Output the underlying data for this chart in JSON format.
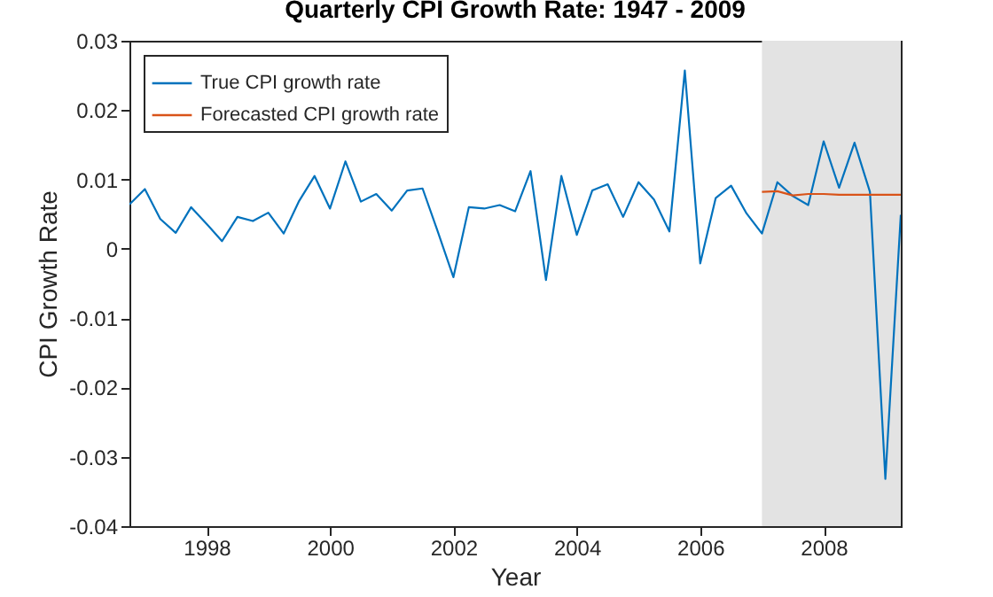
{
  "chart_data": {
    "type": "line",
    "title": "Quarterly CPI Growth Rate: 1947 - 2009",
    "xlabel": "Year",
    "ylabel": "CPI Growth Rate",
    "xlim": [
      1996.75,
      2009.25
    ],
    "xticks": [
      1998,
      2000,
      2002,
      2004,
      2006,
      2008
    ],
    "ylim": [
      -0.04,
      0.03
    ],
    "yticks": [
      -0.04,
      -0.03,
      -0.02,
      -0.01,
      0,
      0.01,
      0.02,
      0.03
    ],
    "legend": "top left",
    "grid": false,
    "bands": [
      {
        "axis": "x",
        "from": 2007,
        "to": 2009.25,
        "color": "#e3e3e3"
      }
    ],
    "series": [
      {
        "name": "True CPI growth rate",
        "color": "#0072bd",
        "x": [
          1996.75,
          1997,
          1997.25,
          1997.5,
          1997.75,
          1998,
          1998.25,
          1998.5,
          1998.75,
          1999,
          1999.25,
          1999.5,
          1999.75,
          2000,
          2000.25,
          2000.5,
          2000.75,
          2001,
          2001.25,
          2001.5,
          2001.75,
          2002,
          2002.25,
          2002.5,
          2002.75,
          2003,
          2003.25,
          2003.5,
          2003.75,
          2004,
          2004.25,
          2004.5,
          2004.75,
          2005,
          2005.25,
          2005.5,
          2005.75,
          2006,
          2006.25,
          2006.5,
          2006.75,
          2007,
          2007.25,
          2007.5,
          2007.75,
          2008,
          2008.25,
          2008.5,
          2008.75,
          2009,
          2009.25
        ],
        "values": [
          0.0064,
          0.0086,
          0.0043,
          0.0023,
          0.006,
          0.0036,
          0.0011,
          0.0046,
          0.004,
          0.0052,
          0.0022,
          0.0069,
          0.0105,
          0.0058,
          0.0126,
          0.0068,
          0.0079,
          0.0055,
          0.0084,
          0.0087,
          0.0024,
          -0.0041,
          0.006,
          0.0058,
          0.0063,
          0.0054,
          0.0112,
          -0.0045,
          0.0105,
          0.002,
          0.0084,
          0.0093,
          0.0046,
          0.0096,
          0.0071,
          0.0025,
          0.0257,
          -0.0021,
          0.0073,
          0.0091,
          0.0051,
          0.0022,
          0.0096,
          0.0076,
          0.0063,
          0.0155,
          0.0088,
          0.0153,
          0.0082,
          -0.0332,
          0.0049
        ]
      },
      {
        "name": "Forecasted CPI growth rate",
        "color": "#d95319",
        "x": [
          2007,
          2007.25,
          2007.5,
          2007.75,
          2008,
          2008.25,
          2008.5,
          2008.75,
          2009,
          2009.25
        ],
        "values": [
          0.0082,
          0.0083,
          0.0077,
          0.0079,
          0.0079,
          0.0078,
          0.0078,
          0.0078,
          0.0078,
          0.0078
        ]
      }
    ]
  }
}
